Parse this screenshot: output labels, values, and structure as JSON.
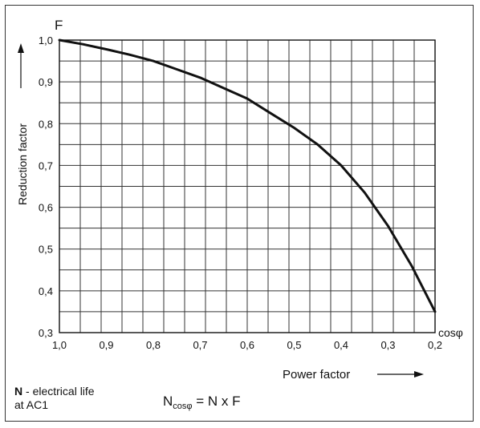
{
  "chart_data": {
    "type": "line",
    "y_symbol": "F",
    "ylabel": "Reduction factor",
    "x_symbol": "cosφ",
    "xlabel": "Power factor",
    "xlim": [
      1.0,
      0.2
    ],
    "ylim": [
      0.3,
      1.0
    ],
    "x_ticks": [
      "1,0",
      "0,9",
      "0,8",
      "0,7",
      "0,6",
      "0,5",
      "0,4",
      "0,3",
      "0,2"
    ],
    "y_ticks": [
      "1,0",
      "0,9",
      "0,8",
      "0,7",
      "0,6",
      "0,5",
      "0,4",
      "0,3"
    ],
    "grid": true,
    "series": [
      {
        "color": "#111111",
        "x": [
          1.0,
          0.95,
          0.9,
          0.85,
          0.8,
          0.75,
          0.7,
          0.65,
          0.6,
          0.55,
          0.5,
          0.45,
          0.4,
          0.35,
          0.3,
          0.25,
          0.2
        ],
        "y": [
          1.0,
          0.99,
          0.978,
          0.965,
          0.95,
          0.93,
          0.91,
          0.885,
          0.86,
          0.825,
          0.79,
          0.75,
          0.7,
          0.635,
          0.555,
          0.46,
          0.35
        ]
      }
    ]
  },
  "notes": {
    "n_symbol": "N",
    "n_desc_1": " - electrical life",
    "n_desc_2": "at AC1",
    "formula_base": "N",
    "formula_sub": "cosφ",
    "formula_rest": " = N x F"
  }
}
